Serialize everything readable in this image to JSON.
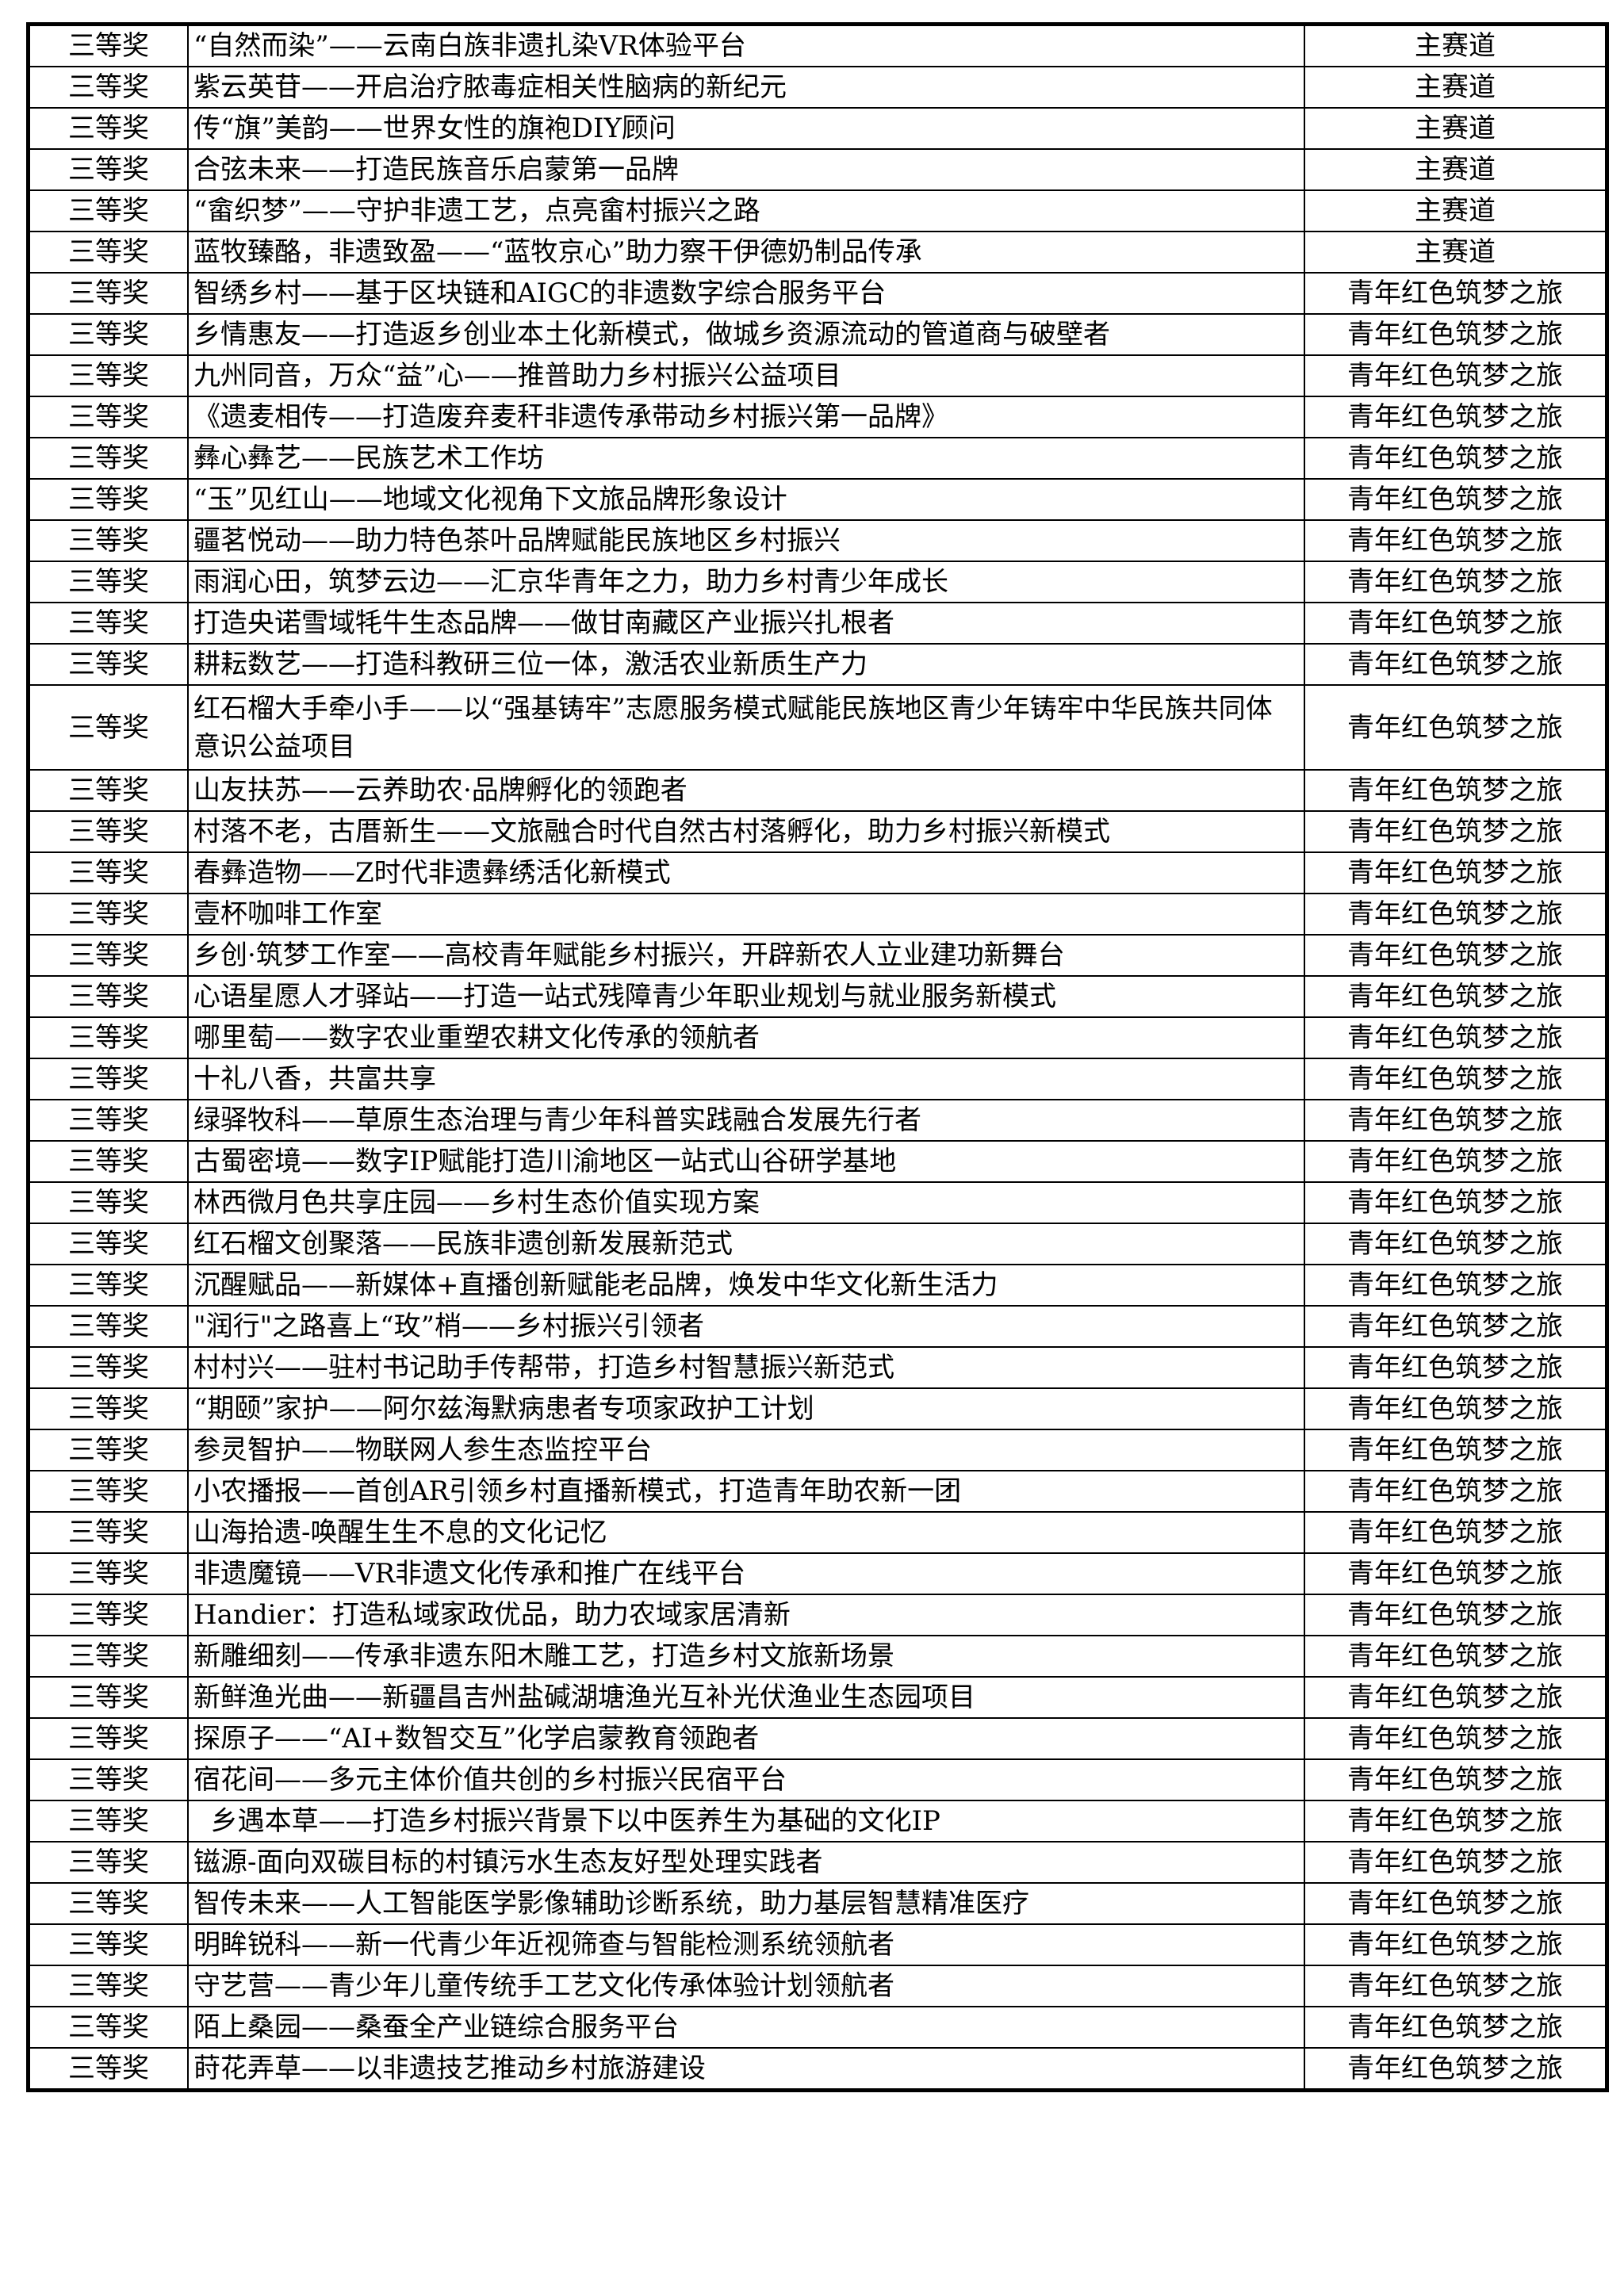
{
  "rows": [
    {
      "award": "三等奖",
      "project": "“自然而染”——云南白族非遗扎染VR体验平台",
      "track": "主赛道"
    },
    {
      "award": "三等奖",
      "project": "紫云英苷——开启治疗脓毒症相关性脑病的新纪元",
      "track": "主赛道"
    },
    {
      "award": "三等奖",
      "project": "传“旗”美韵——世界女性的旗袍DIY顾问",
      "track": "主赛道"
    },
    {
      "award": "三等奖",
      "project": "合弦未来——打造民族音乐启蒙第一品牌",
      "track": "主赛道"
    },
    {
      "award": "三等奖",
      "project": "“畲织梦”——守护非遗工艺，点亮畲村振兴之路",
      "track": "主赛道"
    },
    {
      "award": "三等奖",
      "project": "蓝牧臻酪，非遗致盈——“蓝牧京心”助力察干伊德奶制品传承",
      "track": "主赛道"
    },
    {
      "award": "三等奖",
      "project": "智绣乡村——基于区块链和AIGC的非遗数字综合服务平台",
      "track": "青年红色筑梦之旅"
    },
    {
      "award": "三等奖",
      "project": "乡情惠友——打造返乡创业本土化新模式，做城乡资源流动的管道商与破壁者",
      "track": "青年红色筑梦之旅"
    },
    {
      "award": "三等奖",
      "project": "九州同音，万众“益”心——推普助力乡村振兴公益项目",
      "track": "青年红色筑梦之旅"
    },
    {
      "award": "三等奖",
      "project": "《遗麦相传——打造废弃麦秆非遗传承带动乡村振兴第一品牌》",
      "track": "青年红色筑梦之旅"
    },
    {
      "award": "三等奖",
      "project": "彝心彝艺——民族艺术工作坊",
      "track": "青年红色筑梦之旅"
    },
    {
      "award": "三等奖",
      "project": "“玉”见红山——地域文化视角下文旅品牌形象设计",
      "track": "青年红色筑梦之旅"
    },
    {
      "award": "三等奖",
      "project": "疆茗悦动——助力特色茶叶品牌赋能民族地区乡村振兴",
      "track": "青年红色筑梦之旅"
    },
    {
      "award": "三等奖",
      "project": "雨润心田，筑梦云边——汇京华青年之力，助力乡村青少年成长",
      "track": "青年红色筑梦之旅"
    },
    {
      "award": "三等奖",
      "project": "打造央诺雪域牦牛生态品牌——做甘南藏区产业振兴扎根者",
      "track": "青年红色筑梦之旅"
    },
    {
      "award": "三等奖",
      "project": "耕耘数艺——打造科教研三位一体，激活农业新质生产力",
      "track": "青年红色筑梦之旅"
    },
    {
      "award": "三等奖",
      "project": "红石榴大手牵小手——以“强基铸牢”志愿服务模式赋能民族地区青少年铸牢中华民族共同体意识公益项目",
      "track": "青年红色筑梦之旅",
      "double": true
    },
    {
      "award": "三等奖",
      "project": "山友扶苏——云养助农·品牌孵化的领跑者",
      "track": "青年红色筑梦之旅"
    },
    {
      "award": "三等奖",
      "project": "村落不老，古厝新生——文旅融合时代自然古村落孵化，助力乡村振兴新模式",
      "track": "青年红色筑梦之旅"
    },
    {
      "award": "三等奖",
      "project": "春彝造物——Z时代非遗彝绣活化新模式",
      "track": "青年红色筑梦之旅"
    },
    {
      "award": "三等奖",
      "project": "壹杯咖啡工作室",
      "track": "青年红色筑梦之旅"
    },
    {
      "award": "三等奖",
      "project": "乡创·筑梦工作室——高校青年赋能乡村振兴，开辟新农人立业建功新舞台",
      "track": "青年红色筑梦之旅"
    },
    {
      "award": "三等奖",
      "project": "心语星愿人才驿站——打造一站式残障青少年职业规划与就业服务新模式",
      "track": "青年红色筑梦之旅"
    },
    {
      "award": "三等奖",
      "project": "哪里萄——数字农业重塑农耕文化传承的领航者",
      "track": "青年红色筑梦之旅"
    },
    {
      "award": "三等奖",
      "project": "十礼八香，共富共享",
      "track": "青年红色筑梦之旅"
    },
    {
      "award": "三等奖",
      "project": "绿驿牧科——草原生态治理与青少年科普实践融合发展先行者",
      "track": "青年红色筑梦之旅"
    },
    {
      "award": "三等奖",
      "project": "古蜀密境——数字IP赋能打造川渝地区一站式山谷研学基地",
      "track": "青年红色筑梦之旅"
    },
    {
      "award": "三等奖",
      "project": "林西微月色共享庄园——乡村生态价值实现方案",
      "track": "青年红色筑梦之旅"
    },
    {
      "award": "三等奖",
      "project": "红石榴文创聚落——民族非遗创新发展新范式",
      "track": "青年红色筑梦之旅"
    },
    {
      "award": "三等奖",
      "project": "沉醒赋品——新媒体+直播创新赋能老品牌，焕发中华文化新生活力",
      "track": "青年红色筑梦之旅"
    },
    {
      "award": "三等奖",
      "project": "\"润行\"之路喜上“玫”梢——乡村振兴引领者",
      "track": "青年红色筑梦之旅"
    },
    {
      "award": "三等奖",
      "project": "村村兴——驻村书记助手传帮带，打造乡村智慧振兴新范式",
      "track": "青年红色筑梦之旅"
    },
    {
      "award": "三等奖",
      "project": "“期颐”家护——阿尔兹海默病患者专项家政护工计划",
      "track": "青年红色筑梦之旅"
    },
    {
      "award": "三等奖",
      "project": "参灵智护——物联网人参生态监控平台",
      "track": "青年红色筑梦之旅"
    },
    {
      "award": "三等奖",
      "project": "小农播报——首创AR引领乡村直播新模式，打造青年助农新一团",
      "track": "青年红色筑梦之旅"
    },
    {
      "award": "三等奖",
      "project": "山海拾遗-唤醒生生不息的文化记忆",
      "track": "青年红色筑梦之旅"
    },
    {
      "award": "三等奖",
      "project": "非遗魔镜——VR非遗文化传承和推广在线平台",
      "track": "青年红色筑梦之旅"
    },
    {
      "award": "三等奖",
      "project": "Handier：打造私域家政优品，助力农域家居清新",
      "track": "青年红色筑梦之旅"
    },
    {
      "award": "三等奖",
      "project": "新雕细刻——传承非遗东阳木雕工艺，打造乡村文旅新场景",
      "track": "青年红色筑梦之旅"
    },
    {
      "award": "三等奖",
      "project": "新鲜渔光曲——新疆昌吉州盐碱湖塘渔光互补光伏渔业生态园项目",
      "track": "青年红色筑梦之旅"
    },
    {
      "award": "三等奖",
      "project": "探原子——“AI+数智交互”化学启蒙教育领跑者",
      "track": "青年红色筑梦之旅"
    },
    {
      "award": "三等奖",
      "project": "宿花间——多元主体价值共创的乡村振兴民宿平台",
      "track": "青年红色筑梦之旅"
    },
    {
      "award": "三等奖",
      "project": "  乡遇本草——打造乡村振兴背景下以中医养生为基础的文化IP",
      "track": "青年红色筑梦之旅"
    },
    {
      "award": "三等奖",
      "project": "镃源-面向双碳目标的村镇污水生态友好型处理实践者",
      "track": "青年红色筑梦之旅"
    },
    {
      "award": "三等奖",
      "project": "智传未来——人工智能医学影像辅助诊断系统，助力基层智慧精准医疗",
      "track": "青年红色筑梦之旅"
    },
    {
      "award": "三等奖",
      "project": "明眸锐科——新一代青少年近视筛查与智能检测系统领航者",
      "track": "青年红色筑梦之旅"
    },
    {
      "award": "三等奖",
      "project": "守艺营——青少年儿童传统手工艺文化传承体验计划领航者",
      "track": "青年红色筑梦之旅"
    },
    {
      "award": "三等奖",
      "project": "陌上桑园——桑蚕全产业链综合服务平台",
      "track": "青年红色筑梦之旅"
    },
    {
      "award": "三等奖",
      "project": "莳花弄草——以非遗技艺推动乡村旅游建设",
      "track": "青年红色筑梦之旅"
    }
  ]
}
